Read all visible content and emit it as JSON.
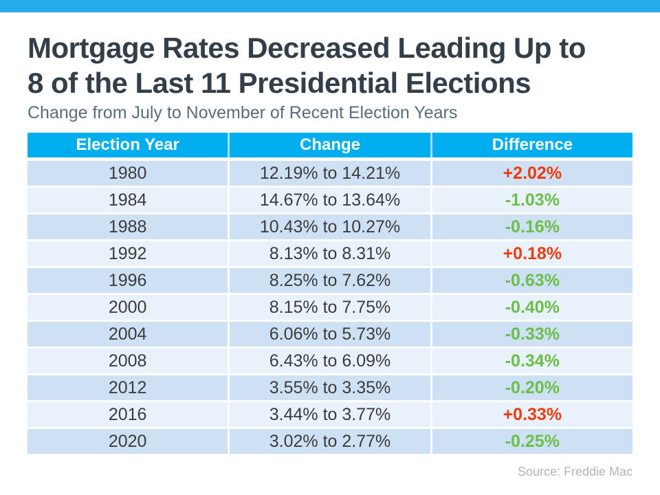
{
  "header": {
    "title_line1": "Mortgage Rates Decreased Leading Up to",
    "title_line2": "8 of the Last 11 Presidential Elections",
    "subtitle": "Change from July to November of Recent Election Years"
  },
  "table": {
    "columns": {
      "year": "Election Year",
      "change": "Change",
      "difference": "Difference"
    },
    "rows": [
      {
        "year": "1980",
        "change": "12.19% to 14.21%",
        "difference": "+2.02%",
        "direction": "up"
      },
      {
        "year": "1984",
        "change": "14.67% to 13.64%",
        "difference": "-1.03%",
        "direction": "down"
      },
      {
        "year": "1988",
        "change": "10.43% to 10.27%",
        "difference": "-0.16%",
        "direction": "down"
      },
      {
        "year": "1992",
        "change": "8.13% to 8.31%",
        "difference": "+0.18%",
        "direction": "up"
      },
      {
        "year": "1996",
        "change": "8.25% to 7.62%",
        "difference": "-0.63%",
        "direction": "down"
      },
      {
        "year": "2000",
        "change": "8.15% to 7.75%",
        "difference": "-0.40%",
        "direction": "down"
      },
      {
        "year": "2004",
        "change": "6.06% to 5.73%",
        "difference": "-0.33%",
        "direction": "down"
      },
      {
        "year": "2008",
        "change": "6.43% to 6.09%",
        "difference": "-0.34%",
        "direction": "down"
      },
      {
        "year": "2012",
        "change": "3.55% to 3.35%",
        "difference": "-0.20%",
        "direction": "down"
      },
      {
        "year": "2016",
        "change": "3.44% to 3.77%",
        "difference": "+0.33%",
        "direction": "up"
      },
      {
        "year": "2020",
        "change": "3.02% to 2.77%",
        "difference": "-0.25%",
        "direction": "down"
      }
    ]
  },
  "footer": {
    "source": "Source: Freddie Mac"
  },
  "colors": {
    "top_bar_cyan": "#25ABE8",
    "header_cyan": "#00AEEF",
    "row_alt_dark": "#CEE1F4",
    "row_alt_light": "#E9F1FB",
    "increase_red": "#F23B0C",
    "decrease_green": "#6BBE4B",
    "title_charcoal": "#333E48",
    "subtitle_gray": "#5C6C76",
    "source_gray": "#AFB8C0"
  },
  "chart_data": {
    "type": "table",
    "title": "Mortgage Rates Decreased Leading Up to 8 of the Last 11 Presidential Elections",
    "subtitle": "Change from July to November of Recent Election Years",
    "columns": [
      "Election Year",
      "Change",
      "Difference"
    ],
    "rows": [
      {
        "year": 1980,
        "july_rate": 12.19,
        "november_rate": 14.21,
        "difference": 2.02
      },
      {
        "year": 1984,
        "july_rate": 14.67,
        "november_rate": 13.64,
        "difference": -1.03
      },
      {
        "year": 1988,
        "july_rate": 10.43,
        "november_rate": 10.27,
        "difference": -0.16
      },
      {
        "year": 1992,
        "july_rate": 8.13,
        "november_rate": 8.31,
        "difference": 0.18
      },
      {
        "year": 1996,
        "july_rate": 8.25,
        "november_rate": 7.62,
        "difference": -0.63
      },
      {
        "year": 2000,
        "july_rate": 8.15,
        "november_rate": 7.75,
        "difference": -0.4
      },
      {
        "year": 2004,
        "july_rate": 6.06,
        "november_rate": 5.73,
        "difference": -0.33
      },
      {
        "year": 2008,
        "july_rate": 6.43,
        "november_rate": 6.09,
        "difference": -0.34
      },
      {
        "year": 2012,
        "july_rate": 3.55,
        "november_rate": 3.35,
        "difference": -0.2
      },
      {
        "year": 2016,
        "july_rate": 3.44,
        "november_rate": 3.77,
        "difference": 0.33
      },
      {
        "year": 2020,
        "july_rate": 3.02,
        "november_rate": 2.77,
        "difference": -0.25
      }
    ],
    "source": "Source: Freddie Mac"
  }
}
